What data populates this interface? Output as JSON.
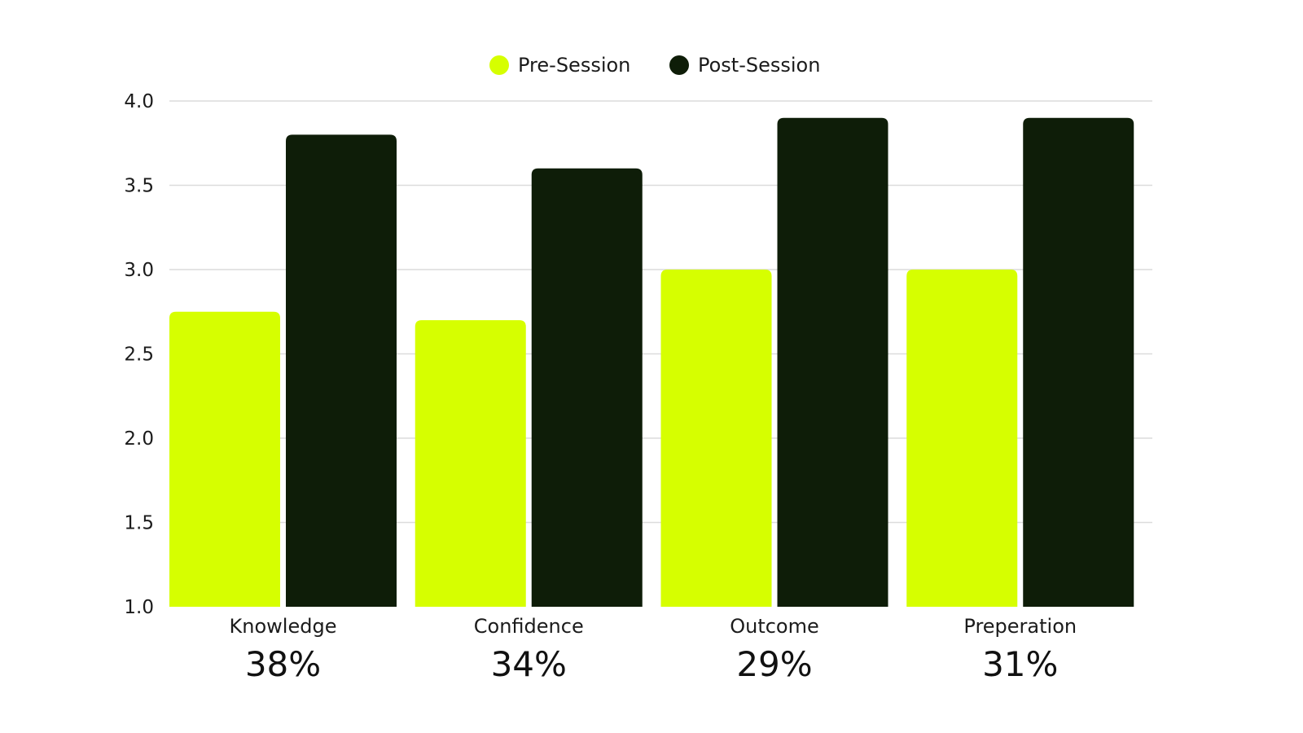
{
  "chart_data": {
    "type": "bar",
    "categories": [
      "Knowledge",
      "Confidence",
      "Outcome",
      "Preperation"
    ],
    "category_annotations": [
      "38%",
      "34%",
      "29%",
      "31%"
    ],
    "series": [
      {
        "name": "Pre-Session",
        "values": [
          2.75,
          2.7,
          3.0,
          3.0
        ],
        "color": "#d6ff00"
      },
      {
        "name": "Post-Session",
        "values": [
          3.8,
          3.6,
          3.9,
          3.9
        ],
        "color": "#0e1d08"
      }
    ],
    "ylim": [
      1.0,
      4.0
    ],
    "yticks": [
      "1.0",
      "1.5",
      "2.0",
      "2.5",
      "3.0",
      "3.5",
      "4.0"
    ],
    "grid": true,
    "legend_position": "top-center",
    "title": "",
    "xlabel": "",
    "ylabel": ""
  }
}
